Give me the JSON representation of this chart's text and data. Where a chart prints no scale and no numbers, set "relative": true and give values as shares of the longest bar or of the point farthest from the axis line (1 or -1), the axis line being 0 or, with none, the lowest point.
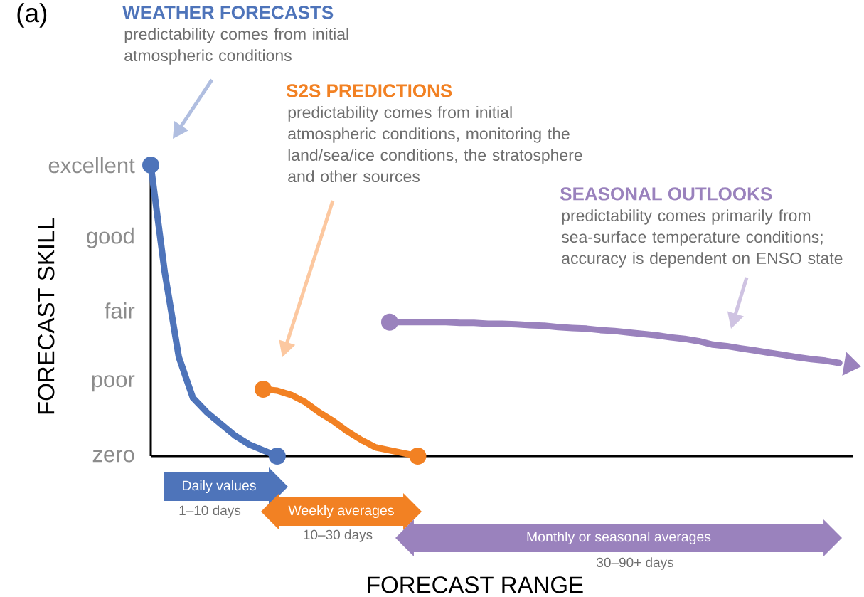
{
  "chart_data": {
    "type": "line",
    "relative": true,
    "ylabel": "FORECAST SKILL",
    "categories": [
      null,
      null,
      null,
      null,
      null,
      null,
      null,
      null,
      null,
      null,
      null,
      null,
      null,
      null,
      null,
      null,
      null,
      null,
      null,
      null,
      null,
      null,
      null,
      null,
      null,
      null,
      null,
      null,
      null,
      null,
      null,
      null,
      null,
      null,
      null,
      null,
      null,
      null,
      null,
      null,
      null,
      null,
      null,
      null,
      null,
      null,
      null,
      null,
      null,
      null,
      null
    ],
    "grid": false,
    "legend": false,
    "line_style": "solid",
    "series": [
      {
        "name": "WEATHER FORECASTS",
        "color": "#4e74ba",
        "values": [
          1,
          0.63,
          0.34,
          0.2,
          0.15,
          0.11,
          0.07,
          0.04,
          0.02,
          0,
          null,
          null,
          null,
          null,
          null,
          null,
          null,
          null,
          null,
          null,
          null,
          null,
          null,
          null,
          null,
          null,
          null,
          null,
          null,
          null,
          null,
          null,
          null,
          null,
          null,
          null,
          null,
          null,
          null,
          null,
          null,
          null,
          null,
          null,
          null,
          null,
          null,
          null,
          null,
          null,
          null
        ]
      },
      {
        "name": "S2S PREDICTIONS",
        "color": "#f28123",
        "values": [
          null,
          null,
          null,
          null,
          null,
          null,
          null,
          null,
          0.23,
          0.225,
          0.21,
          0.185,
          0.15,
          0.12,
          0.085,
          0.055,
          0.03,
          0.02,
          0.01,
          0,
          null,
          null,
          null,
          null,
          null,
          null,
          null,
          null,
          null,
          null,
          null,
          null,
          null,
          null,
          null,
          null,
          null,
          null,
          null,
          null,
          null,
          null,
          null,
          null,
          null,
          null,
          null,
          null,
          null,
          null,
          null
        ]
      },
      {
        "name": "SEASONAL OUTLOOKS",
        "color": "#9a82bd",
        "values": [
          null,
          null,
          null,
          null,
          null,
          null,
          null,
          null,
          null,
          null,
          null,
          null,
          null,
          null,
          null,
          null,
          null,
          0.46,
          0.46,
          0.46,
          0.46,
          0.46,
          0.458,
          0.458,
          0.455,
          0.455,
          0.453,
          0.45,
          0.448,
          0.443,
          0.44,
          0.438,
          0.433,
          0.43,
          0.425,
          0.42,
          0.415,
          0.408,
          0.403,
          0.395,
          0.383,
          0.378,
          0.37,
          0.363,
          0.355,
          0.348,
          0.34,
          0.333,
          0.328,
          0.32,
          null
        ]
      }
    ],
    "annotations": [
      "(a)",
      "predictability comes from initial atmospheric conditions",
      "predictability comes from initial atmospheric conditions, monitoring the land/sea/ice conditions, the stratosphere and other sources",
      "predictability comes primarily from sea-surface temperature conditions; accuracy is dependent on ENSO state",
      "Daily values",
      "1–10 days",
      "Weekly averages",
      "10–30 days",
      "Monthly or seasonal averages",
      "30–90+ days",
      "zero",
      "poor",
      "fair",
      "good",
      "excellent",
      "FORECAST RANGE"
    ]
  }
}
